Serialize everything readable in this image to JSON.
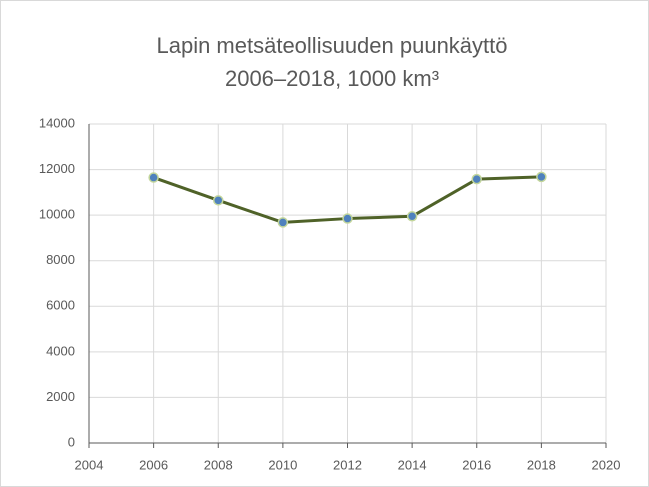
{
  "chart_data": {
    "type": "line",
    "title": [
      "Lapin metsäteollisuuden puunkäyttö",
      "2006–2018, 1000 km³"
    ],
    "x": [
      2006,
      2008,
      2010,
      2012,
      2014,
      2016,
      2018
    ],
    "series": [
      {
        "color": "#4f6228",
        "marker_fill": "#4f81bd",
        "marker_edge": "#c3d69b",
        "values": [
          11650,
          10650,
          9680,
          9850,
          9950,
          11580,
          11680
        ]
      }
    ],
    "xlim": [
      2004,
      2020
    ],
    "xticks": [
      2004,
      2006,
      2008,
      2010,
      2012,
      2014,
      2016,
      2018,
      2020
    ],
    "ylim": [
      0,
      14000
    ],
    "yticks": [
      0,
      2000,
      4000,
      6000,
      8000,
      10000,
      12000,
      14000
    ],
    "grid": true
  }
}
